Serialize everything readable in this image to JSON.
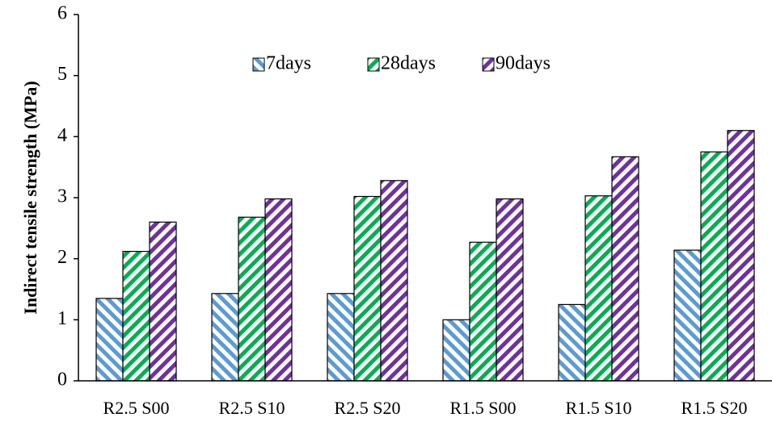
{
  "chart_data": {
    "type": "bar",
    "y_label": "Indirect tensile strength (MPa)",
    "categories": [
      "R2.5 S00",
      "R2.5 S10",
      "R2.5 S20",
      "R1.5 S00",
      "R1.5 S10",
      "R1.5 S20"
    ],
    "series": [
      {
        "name": "7days",
        "color": "#5b9bd5",
        "hatch": "down",
        "values": [
          1.35,
          1.43,
          1.43,
          1.0,
          1.25,
          2.14
        ]
      },
      {
        "name": "28days",
        "color": "#00b050",
        "hatch": "up",
        "values": [
          2.12,
          2.68,
          3.02,
          2.27,
          3.03,
          3.75
        ]
      },
      {
        "name": "90days",
        "color": "#7030a0",
        "hatch": "up",
        "values": [
          2.6,
          2.98,
          3.28,
          2.98,
          3.67,
          4.1
        ]
      }
    ],
    "ylim": [
      0,
      6
    ],
    "yticks": [
      0,
      1,
      2,
      3,
      4,
      5,
      6
    ],
    "grid": false,
    "legend": "top"
  }
}
